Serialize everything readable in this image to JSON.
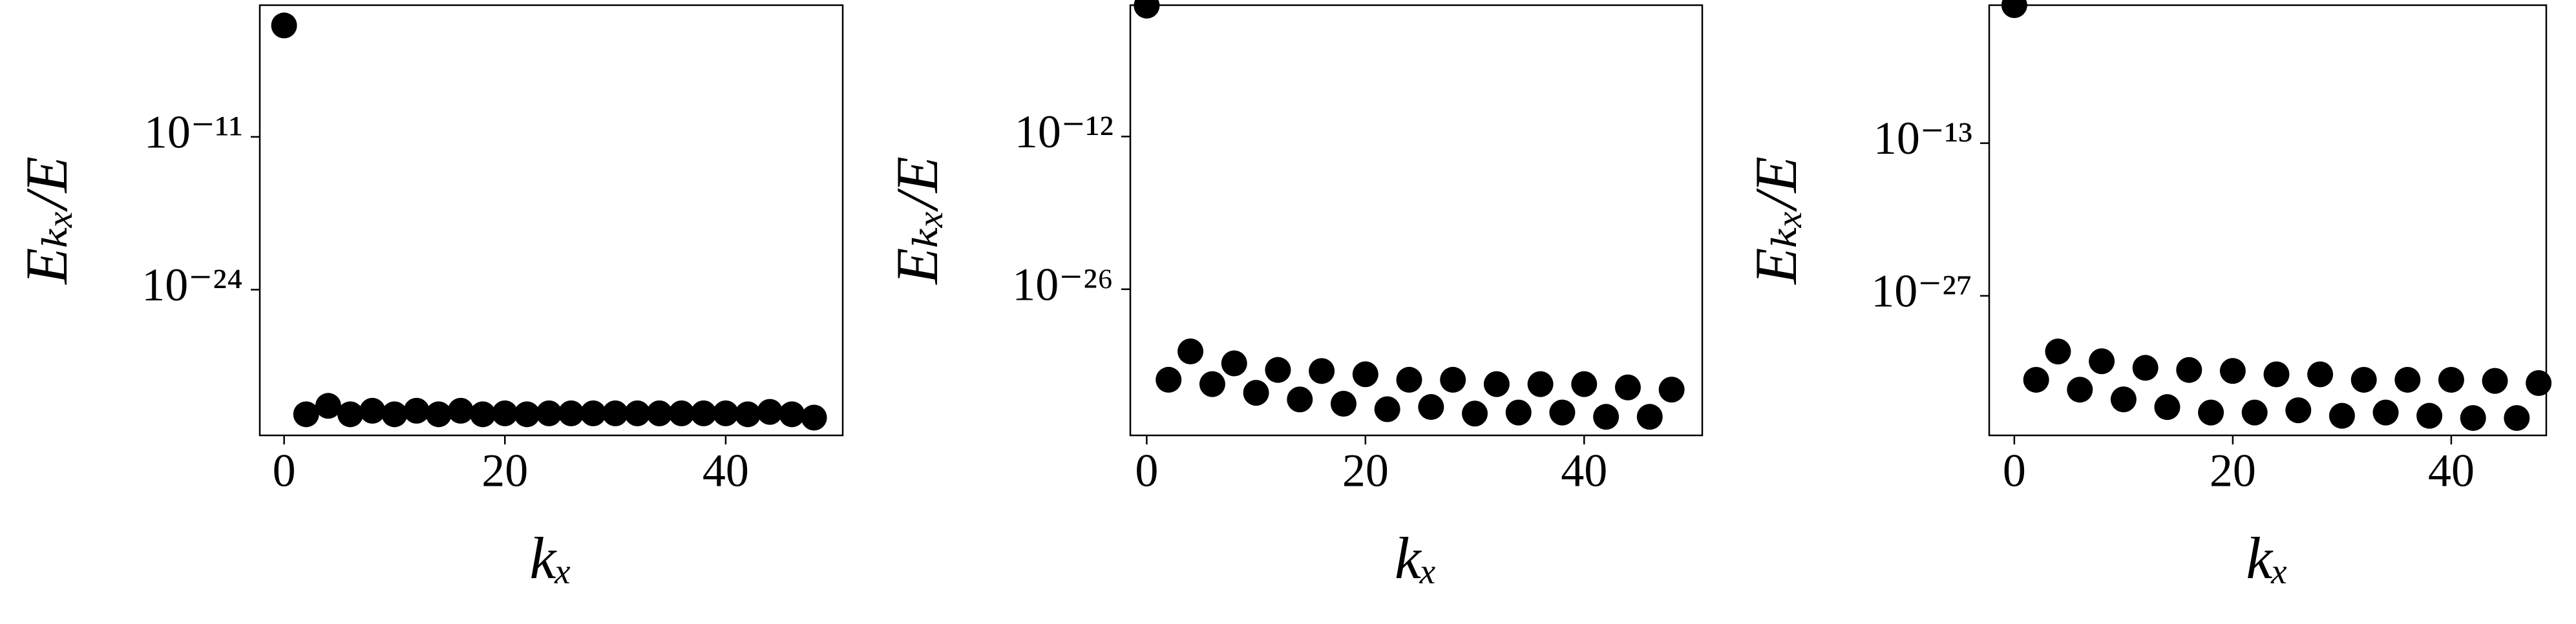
{
  "chart_data": [
    {
      "type": "scatter",
      "x_label": "kₓ",
      "y_label": "Eₖₓ/E",
      "log_y": true,
      "color": "#000000",
      "x": [
        0,
        2,
        4,
        6,
        8,
        10,
        12,
        14,
        16,
        18,
        20,
        22,
        24,
        26,
        28,
        30,
        32,
        34,
        36,
        38,
        40,
        42,
        44,
        46,
        48
      ],
      "values": [
        0.03,
        2.5e-35,
        1.3e-34,
        2.5e-35,
        5e-35,
        2.5e-35,
        5e-35,
        2.5e-35,
        5e-35,
        2.5e-35,
        3e-35,
        2.5e-35,
        3e-35,
        3e-35,
        3e-35,
        3e-35,
        3e-35,
        3e-35,
        3e-35,
        3e-35,
        3e-35,
        2.5e-35,
        4e-35,
        2.5e-35,
        1.3e-35
      ],
      "xlim": [
        -2.2,
        50.6
      ],
      "xticks": [
        0,
        20,
        40
      ],
      "ylim": [
        4e-37,
        1.6
      ],
      "yticks": [
        {
          "value": 1e-11,
          "label": "10⁻¹¹"
        },
        {
          "value": 1e-24,
          "label": "10⁻²⁴"
        }
      ]
    },
    {
      "type": "scatter",
      "x_label": "kₓ",
      "y_label": "Eₖₓ/E",
      "log_y": true,
      "color": "#000000",
      "x": [
        0,
        2,
        4,
        6,
        8,
        10,
        12,
        14,
        16,
        18,
        20,
        22,
        24,
        26,
        28,
        30,
        32,
        34,
        36,
        38,
        40,
        42,
        44,
        46,
        48
      ],
      "values": [
        1,
        5e-35,
        2e-32,
        2e-35,
        1.6e-33,
        3.2e-36,
        4e-34,
        7.9e-37,
        3.2e-34,
        3.2e-37,
        1.6e-34,
        1e-37,
        5e-35,
        1.6e-37,
        5e-35,
        4e-38,
        2e-35,
        5e-38,
        2e-35,
        5e-38,
        2e-35,
        2e-38,
        1e-35,
        2e-38,
        6.3e-36
      ],
      "xlim": [
        -1.5,
        50.8
      ],
      "xticks": [
        0,
        20,
        40
      ],
      "ylim": [
        4e-40,
        1.1
      ],
      "yticks": [
        {
          "value": 1e-12,
          "label": "10⁻¹²"
        },
        {
          "value": 1e-26,
          "label": "10⁻²⁶"
        }
      ]
    },
    {
      "type": "scatter",
      "x_label": "kₓ",
      "y_label": "Eₖₓ/E",
      "log_y": true,
      "color": "#000000",
      "x": [
        0,
        2,
        4,
        6,
        8,
        10,
        12,
        14,
        16,
        18,
        20,
        22,
        24,
        26,
        28,
        30,
        32,
        34,
        36,
        38,
        40,
        42,
        44,
        46,
        48
      ],
      "values": [
        0.45,
        2e-35,
        7.9e-33,
        2.5e-36,
        1e-33,
        3.2e-37,
        2.5e-34,
        6.3e-38,
        1.6e-34,
        2e-38,
        1.3e-34,
        2e-38,
        6.3e-35,
        3.2e-38,
        6.3e-35,
        1e-38,
        2e-35,
        2e-38,
        2e-35,
        1e-38,
        2e-35,
        6.3e-39,
        1.6e-35,
        6.3e-39,
        1e-35
      ],
      "xlim": [
        -2.3,
        48.7
      ],
      "xticks": [
        0,
        20,
        40
      ],
      "ylim": [
        1.6e-40,
        0.45
      ],
      "yticks": [
        {
          "value": 1e-13,
          "label": "10⁻¹³"
        },
        {
          "value": 1e-27,
          "label": "10⁻²⁷"
        }
      ]
    }
  ]
}
